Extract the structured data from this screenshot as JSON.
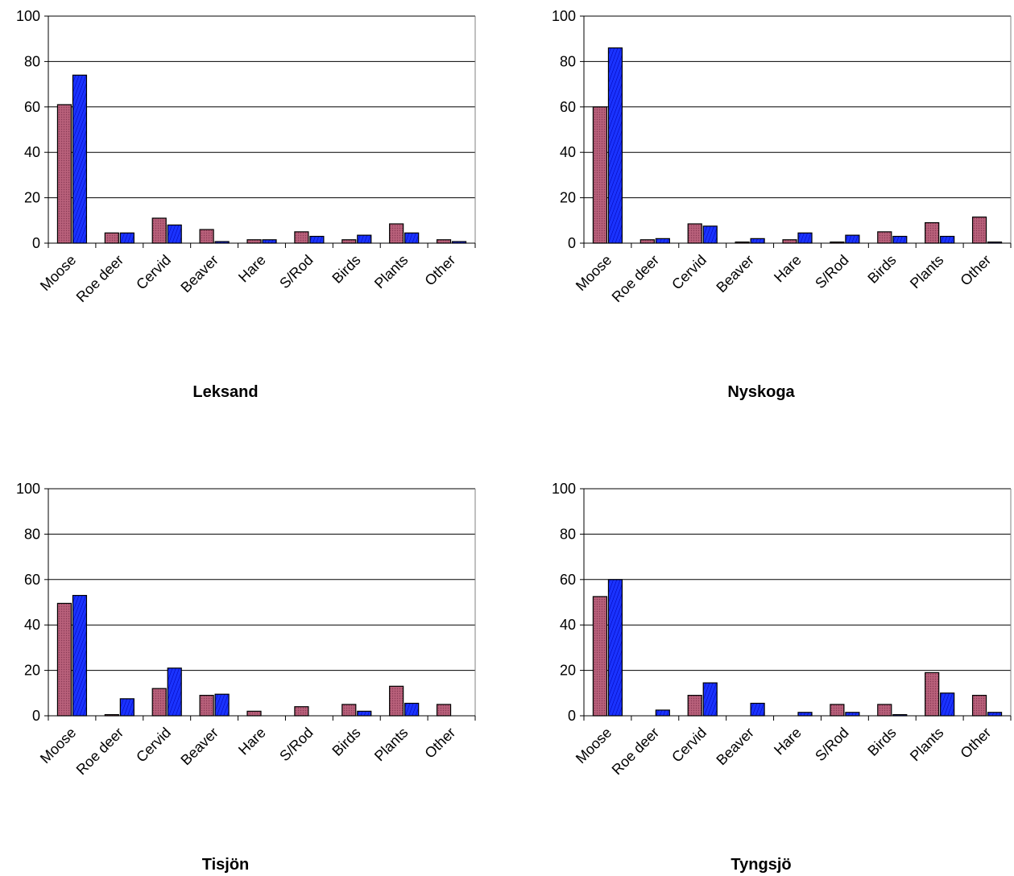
{
  "colors": {
    "series_1_fill": "#b8607a",
    "series_1_stripe": "#8a3a55",
    "series_2_fill": "#1a33ff",
    "series_2_stripe": "#0000aa",
    "gridline": "#000000"
  },
  "chart_data": [
    {
      "type": "bar",
      "title": "Leksand",
      "categories": [
        "Moose",
        "Roe deer",
        "Cervid",
        "Beaver",
        "Hare",
        "S/Rod",
        "Birds",
        "Plants",
        "Other"
      ],
      "series": [
        {
          "values": [
            61,
            4.5,
            11,
            6,
            1.5,
            5,
            1.5,
            8.5,
            1.5
          ]
        },
        {
          "values": [
            74,
            4.5,
            8,
            0.7,
            1.5,
            3,
            3.5,
            4.5,
            0.7
          ]
        }
      ],
      "ylim": [
        0,
        100
      ],
      "yticks": [
        "0",
        "20",
        "40",
        "60",
        "80",
        "100"
      ],
      "grid": true
    },
    {
      "type": "bar",
      "title": "Nyskoga",
      "categories": [
        "Moose",
        "Roe deer",
        "Cervid",
        "Beaver",
        "Hare",
        "S/Rod",
        "Birds",
        "Plants",
        "Other"
      ],
      "series": [
        {
          "values": [
            60,
            1.5,
            8.5,
            0.5,
            1.5,
            0.5,
            5,
            9,
            11.5
          ]
        },
        {
          "values": [
            86,
            2,
            7.5,
            2,
            4.5,
            3.5,
            3,
            3,
            0.5
          ]
        }
      ],
      "ylim": [
        0,
        100
      ],
      "yticks": [
        "0",
        "20",
        "40",
        "60",
        "80",
        "100"
      ],
      "grid": true
    },
    {
      "type": "bar",
      "title": "Tisjön",
      "categories": [
        "Moose",
        "Roe deer",
        "Cervid",
        "Beaver",
        "Hare",
        "S/Rod",
        "Birds",
        "Plants",
        "Other"
      ],
      "series": [
        {
          "values": [
            49.5,
            0.5,
            12,
            9,
            2,
            4,
            5,
            13,
            5
          ]
        },
        {
          "values": [
            53,
            7.5,
            21,
            9.5,
            0,
            0,
            2,
            5.5,
            0
          ]
        }
      ],
      "ylim": [
        0,
        100
      ],
      "yticks": [
        "0",
        "20",
        "40",
        "60",
        "80",
        "100"
      ],
      "grid": true
    },
    {
      "type": "bar",
      "title": "Tyngsjö",
      "categories": [
        "Moose",
        "Roe deer",
        "Cervid",
        "Beaver",
        "Hare",
        "S/Rod",
        "Birds",
        "Plants",
        "Other"
      ],
      "series": [
        {
          "values": [
            52.5,
            0,
            9,
            0,
            0,
            5,
            5,
            19,
            9
          ]
        },
        {
          "values": [
            60,
            2.5,
            14.5,
            5.5,
            1.5,
            1.5,
            0.5,
            10,
            1.5
          ]
        }
      ],
      "ylim": [
        0,
        100
      ],
      "yticks": [
        "0",
        "20",
        "40",
        "60",
        "80",
        "100"
      ],
      "grid": true
    }
  ]
}
